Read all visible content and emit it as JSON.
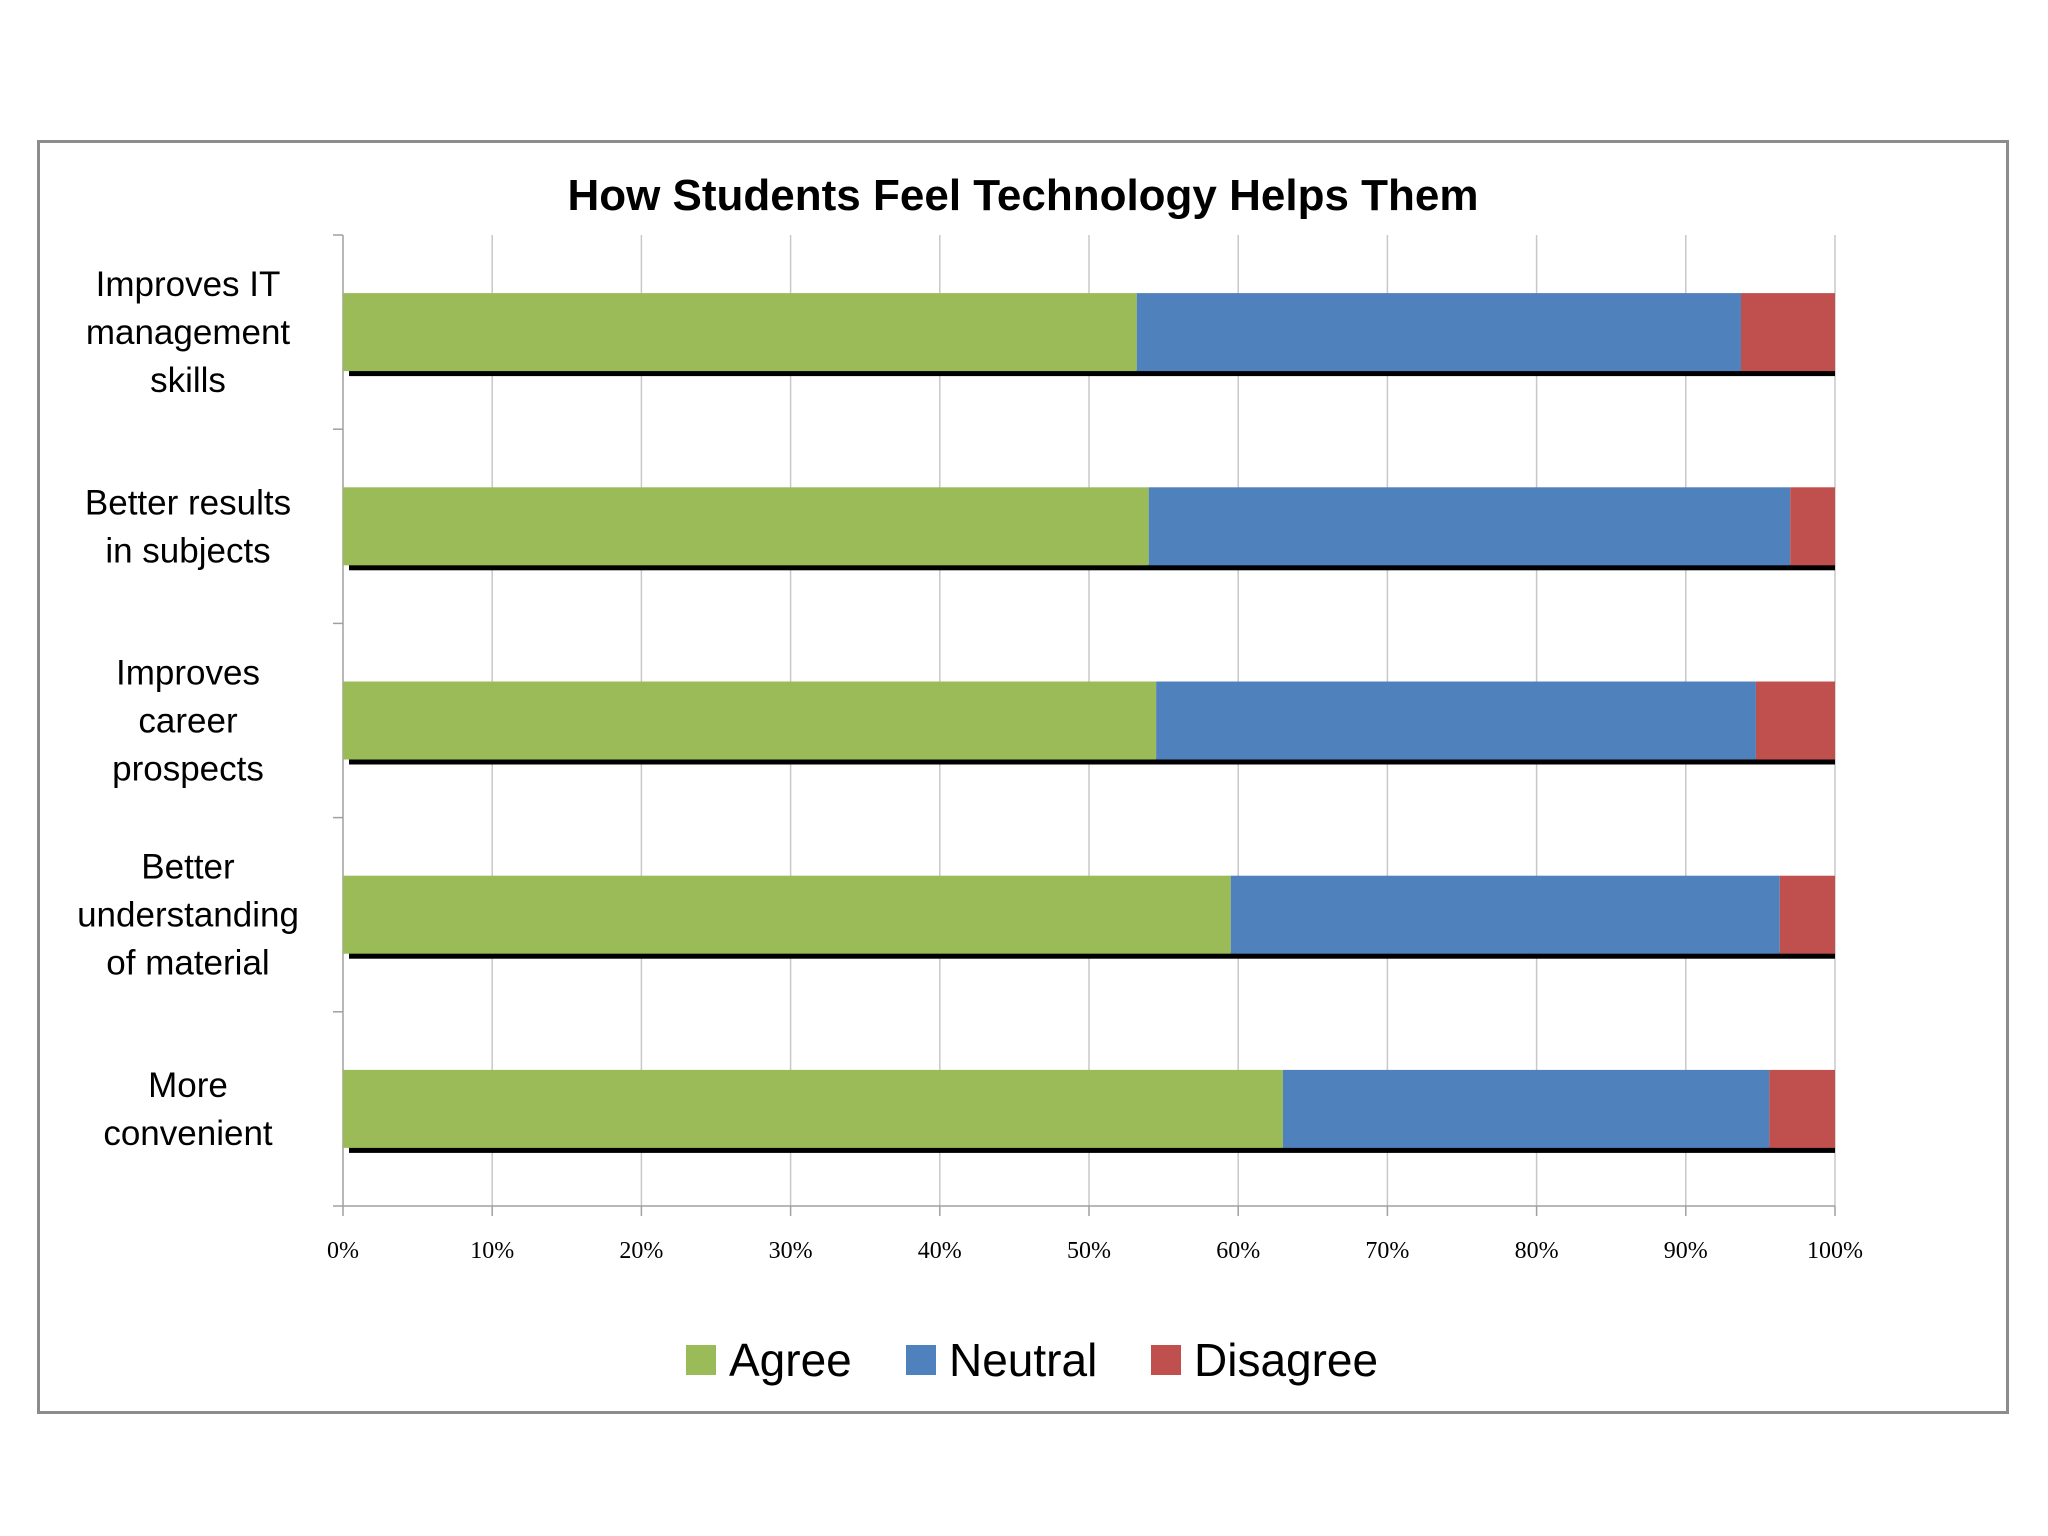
{
  "chart_data": {
    "type": "bar",
    "orientation": "horizontal",
    "stacked": true,
    "normalized": "percent",
    "title": "How Students Feel Technology Helps Them",
    "xlabel": "",
    "ylabel": "",
    "xlim": [
      0,
      100
    ],
    "x_ticks": [
      "0%",
      "10%",
      "20%",
      "30%",
      "40%",
      "50%",
      "60%",
      "70%",
      "80%",
      "90%",
      "100%"
    ],
    "grid": true,
    "legend_position": "bottom",
    "categories": [
      [
        "Improves IT",
        "management",
        "skills"
      ],
      [
        "Better results",
        "in subjects"
      ],
      [
        "Improves",
        "career",
        "prospects"
      ],
      [
        "Better",
        "understanding",
        "of material"
      ],
      [
        "More",
        "convenient"
      ]
    ],
    "series": [
      {
        "name": "Agree",
        "color": "#9bbb59",
        "values": [
          53.2,
          54.0,
          54.5,
          59.5,
          63.0
        ]
      },
      {
        "name": "Neutral",
        "color": "#4f81bd",
        "values": [
          40.5,
          43.0,
          40.2,
          36.8,
          32.6
        ]
      },
      {
        "name": "Disagree",
        "color": "#c0504d",
        "values": [
          6.3,
          3.0,
          5.3,
          3.7,
          4.4
        ]
      }
    ]
  }
}
